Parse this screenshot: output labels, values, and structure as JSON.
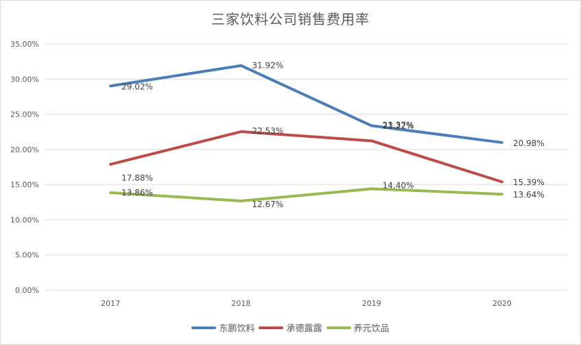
{
  "chart_data": {
    "type": "line",
    "title": "三家饮料公司销售费用率",
    "xlabel": "",
    "ylabel": "",
    "categories": [
      "2017",
      "2018",
      "2019",
      "2020"
    ],
    "ylim": [
      0,
      0.35
    ],
    "yticks": [
      "0.00%",
      "5.00%",
      "10.00%",
      "15.00%",
      "20.00%",
      "25.00%",
      "30.00%",
      "35.00%"
    ],
    "grid": true,
    "legend_position": "bottom",
    "series": [
      {
        "name": "东鹏饮料",
        "color": "#4a7ebb",
        "values": [
          0.2902,
          0.3192,
          0.2337,
          0.2098
        ],
        "labels": [
          "29.02%",
          "31.92%",
          "23.37%",
          "20.98%"
        ]
      },
      {
        "name": "承德露露",
        "color": "#be4b48",
        "values": [
          0.1788,
          0.2253,
          0.2122,
          0.1539
        ],
        "labels": [
          "17.88%",
          "22.53%",
          "21.22%",
          "15.39%"
        ]
      },
      {
        "name": "养元饮品",
        "color": "#98b954",
        "values": [
          0.1386,
          0.1267,
          0.144,
          0.1364
        ],
        "labels": [
          "13.86%",
          "12.67%",
          "14.40%",
          "13.64%"
        ]
      }
    ]
  }
}
